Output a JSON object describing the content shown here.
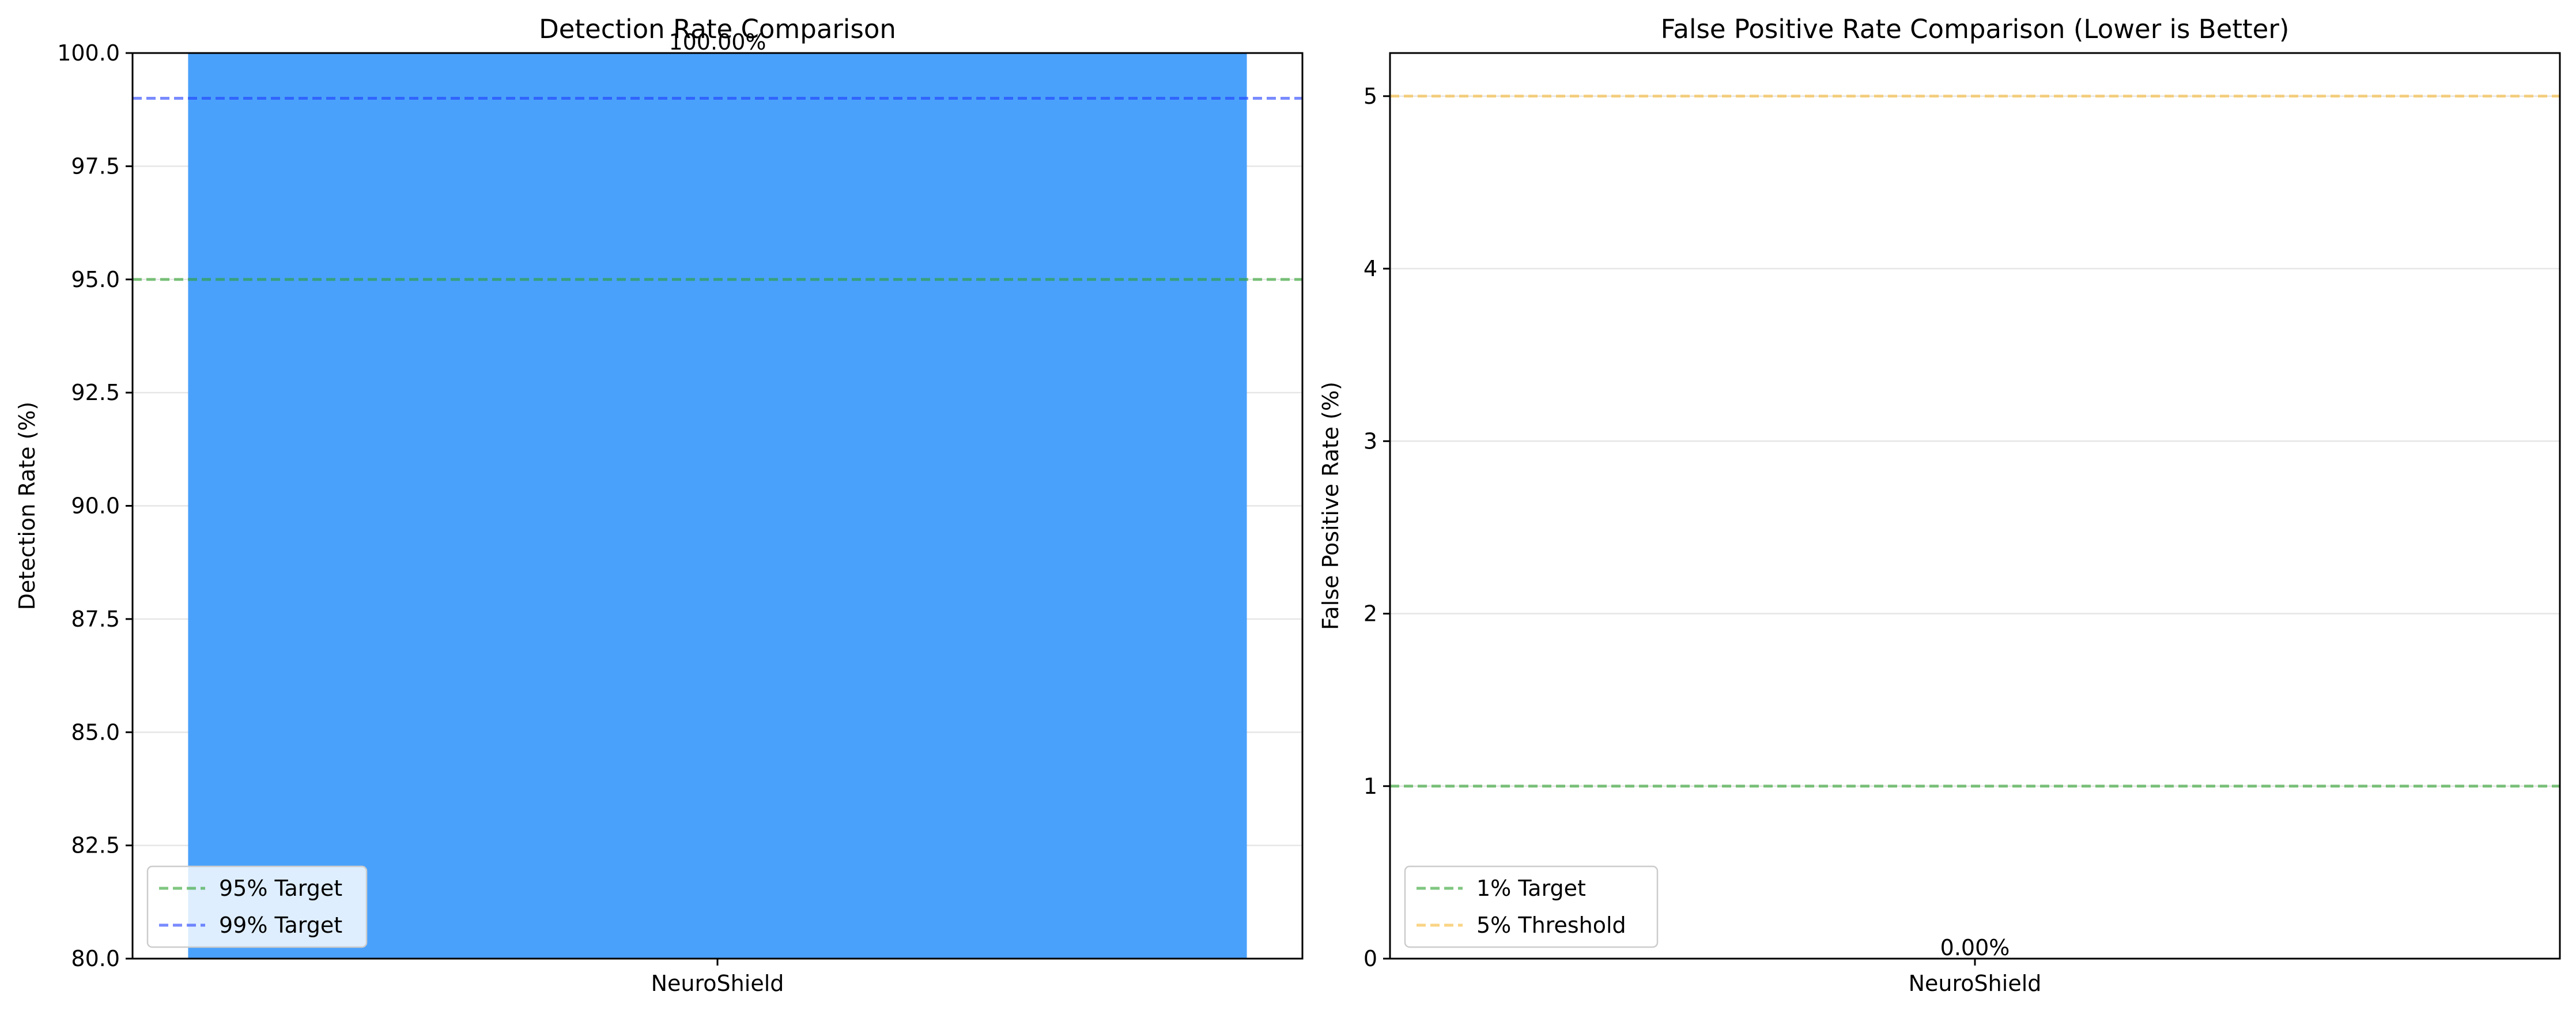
{
  "colors": {
    "bar": "#4aa1fb",
    "grid": "#e6e6e6",
    "target_green": "#2ca02c",
    "target_blue": "#1f3dff",
    "threshold_orange": "#f7b733"
  },
  "chart_data": [
    {
      "type": "bar",
      "title": "Detection Rate Comparison",
      "xlabel": "",
      "ylabel": "Detection Rate (%)",
      "categories": [
        "NeuroShield"
      ],
      "values": [
        100.0
      ],
      "value_labels": [
        "100.00%"
      ],
      "ylim": [
        80,
        100
      ],
      "yticks": [
        80.0,
        82.5,
        85.0,
        87.5,
        90.0,
        92.5,
        95.0,
        97.5,
        100.0
      ],
      "ytick_labels": [
        "80.0",
        "82.5",
        "85.0",
        "87.5",
        "90.0",
        "92.5",
        "95.0",
        "97.5",
        "100.0"
      ],
      "reference_lines": [
        {
          "label": "95% Target",
          "y": 95,
          "color": "#2ca02c"
        },
        {
          "label": "99% Target",
          "y": 99,
          "color": "#1f3dff"
        }
      ],
      "grid": "y",
      "legend_position": "lower-left"
    },
    {
      "type": "bar",
      "title": "False Positive Rate Comparison (Lower is Better)",
      "xlabel": "",
      "ylabel": "False Positive Rate (%)",
      "categories": [
        "NeuroShield"
      ],
      "values": [
        0.0
      ],
      "value_labels": [
        "0.00%"
      ],
      "ylim": [
        0,
        5.25
      ],
      "yticks": [
        0,
        1,
        2,
        3,
        4,
        5
      ],
      "ytick_labels": [
        "0",
        "1",
        "2",
        "3",
        "4",
        "5"
      ],
      "reference_lines": [
        {
          "label": "1% Target",
          "y": 1,
          "color": "#2ca02c"
        },
        {
          "label": "5% Threshold",
          "y": 5,
          "color": "#f7b733"
        }
      ],
      "grid": "y",
      "legend_position": "lower-left"
    }
  ]
}
